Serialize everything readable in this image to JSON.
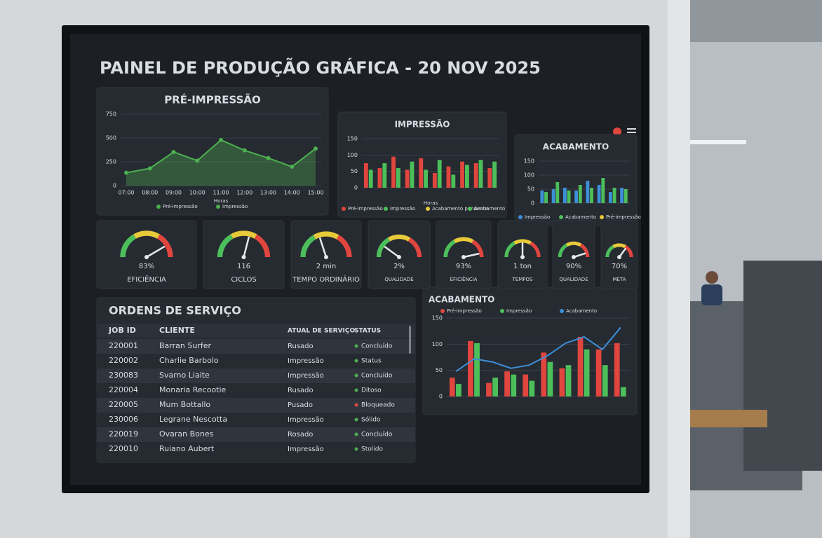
{
  "header": {
    "title": "PAINEL DE PRODUÇÃO GRÁFICA - 20 NOV 2025"
  },
  "chart_data": [
    {
      "type": "line",
      "title": "PRÉ-IMPRESSÃO",
      "x_label": "Horas",
      "categories": [
        "07:00",
        "08:00",
        "09:00",
        "10:00",
        "11:00",
        "12:00",
        "13:00",
        "14:00",
        "15:00"
      ],
      "series": [
        {
          "name": "Pré-impressão",
          "color": "#4caf50",
          "values": [
            135,
            181,
            353,
            262,
            479,
            370,
            289,
            199,
            389
          ]
        }
      ],
      "extra_legend": [
        {
          "name": "Impressão",
          "color": "#4caf50"
        }
      ],
      "ylim": [
        0,
        750
      ],
      "yticks": [
        0,
        250,
        500,
        750
      ],
      "grid": true
    },
    {
      "type": "bar",
      "title": "IMPRESSÃO",
      "x_label": "Horas",
      "categories": [
        null,
        null,
        null,
        null,
        null,
        null,
        null,
        null,
        null,
        null
      ],
      "series": [
        {
          "name": "Pré-impressão",
          "color": "#e0463e",
          "values": [
            75,
            60,
            95,
            55,
            90,
            45,
            65,
            80,
            75,
            60
          ]
        },
        {
          "name": "Impressão",
          "color": "#4cbf5a",
          "values": [
            55,
            75,
            60,
            80,
            55,
            85,
            40,
            70,
            85,
            80
          ]
        }
      ],
      "extra_legend": [
        {
          "name": "Acabamento pendente",
          "color": "#e8c93a"
        },
        {
          "name": "Acabamento",
          "color": "#4cbf5a"
        }
      ],
      "ylim": [
        0,
        150
      ],
      "yticks": [
        0,
        50,
        100,
        150
      ],
      "grid": true
    },
    {
      "type": "bar",
      "title": "ACABAMENTO",
      "categories": [
        null,
        null,
        null,
        null,
        null,
        null,
        null,
        null
      ],
      "series": [
        {
          "name": "Impressão",
          "color": "#3d8fd8",
          "values": [
            45,
            50,
            55,
            45,
            80,
            65,
            40,
            55
          ]
        },
        {
          "name": "Acabamento",
          "color": "#4cbf5a",
          "values": [
            40,
            75,
            45,
            65,
            55,
            90,
            55,
            50
          ]
        }
      ],
      "extra_legend": [
        {
          "name": "Pré-impressão",
          "color": "#e8c93a"
        }
      ],
      "ylim": [
        0,
        150
      ],
      "yticks": [
        0,
        50,
        100,
        150
      ],
      "grid": true
    },
    {
      "type": "gauge",
      "gauges": [
        {
          "label": "EFICIÊNCIA",
          "value": 83,
          "value_label": "83%",
          "max": 100
        },
        {
          "label": "CICLOS",
          "value": 116,
          "max": 200
        },
        {
          "label": "TEMPO ORDINÁRIO",
          "value": 2,
          "value_label": "2 min",
          "max": 5
        },
        {
          "label": "QUALIDADE",
          "value": 2,
          "value_label": "2%",
          "max": 10
        },
        {
          "label": "EFICIÊNCIA",
          "value": 93,
          "value_label": "93%",
          "max": 100
        },
        {
          "label": "TEMPOS",
          "value": 1,
          "value_label": "1 ton",
          "max": 2
        },
        {
          "label": "QUALIDADE",
          "value": 90,
          "value_label": "90%",
          "max": 100
        },
        {
          "label": "META",
          "value": 70,
          "value_label": "70%",
          "max": 100
        }
      ]
    },
    {
      "type": "bar",
      "title": "ACABAMENTO",
      "categories": [
        null,
        null,
        null,
        null,
        null,
        null,
        null,
        null,
        null,
        null
      ],
      "series": [
        {
          "name": "Pré-impressão",
          "color": "#e0463e",
          "values": [
            36,
            106,
            26,
            48,
            42,
            84,
            54,
            114,
            90,
            102
          ]
        },
        {
          "name": "Impressão",
          "color": "#4cbf5a",
          "values": [
            24,
            102,
            36,
            42,
            30,
            66,
            60,
            90,
            60,
            18
          ]
        },
        {
          "name": "Acabamento",
          "color": "#3d8fd8",
          "kind": "line",
          "values": [
            48,
            72,
            66,
            54,
            60,
            78,
            102,
            114,
            90,
            132
          ]
        }
      ],
      "ylim": [
        0,
        150
      ],
      "yticks": [
        0,
        50,
        100,
        150
      ],
      "grid": true,
      "legend": "top"
    }
  ],
  "orders": {
    "title": "ORDENS DE SERVIÇO",
    "columns": [
      "JOB ID",
      "CLIENTE",
      "ATUAL DE SERVIÇO",
      "STATUS"
    ],
    "rows": [
      {
        "job_id": "220001",
        "cliente": "Barran Surfer",
        "servico": "Rusado",
        "status": "Concluído",
        "status_color": "#4caf50"
      },
      {
        "job_id": "220002",
        "cliente": "Charlie Barbolo",
        "servico": "Impressão",
        "status": "Status",
        "status_color": "#4caf50"
      },
      {
        "job_id": "230083",
        "cliente": "Svarno Liaite",
        "servico": "Impressão",
        "status": "Concluído",
        "status_color": "#4caf50"
      },
      {
        "job_id": "220004",
        "cliente": "Monaria Recootie",
        "servico": "Rusado",
        "status": "Ditoso",
        "status_color": "#4caf50"
      },
      {
        "job_id": "220005",
        "cliente": "Mum Bottallo",
        "servico": "Pusado",
        "status": "Bloqueado",
        "status_color": "#e0463e"
      },
      {
        "job_id": "230006",
        "cliente": "Legrane Nescotta",
        "servico": "Impressão",
        "status": "Sólido",
        "status_color": "#4caf50"
      },
      {
        "job_id": "220019",
        "cliente": "Ovaran Bones",
        "servico": "Rosado",
        "status": "Concluído",
        "status_color": "#4caf50"
      },
      {
        "job_id": "220010",
        "cliente": "Ruiano Aubert",
        "servico": "Impressão",
        "status": "Stolido",
        "status_color": "#4caf50"
      }
    ]
  }
}
